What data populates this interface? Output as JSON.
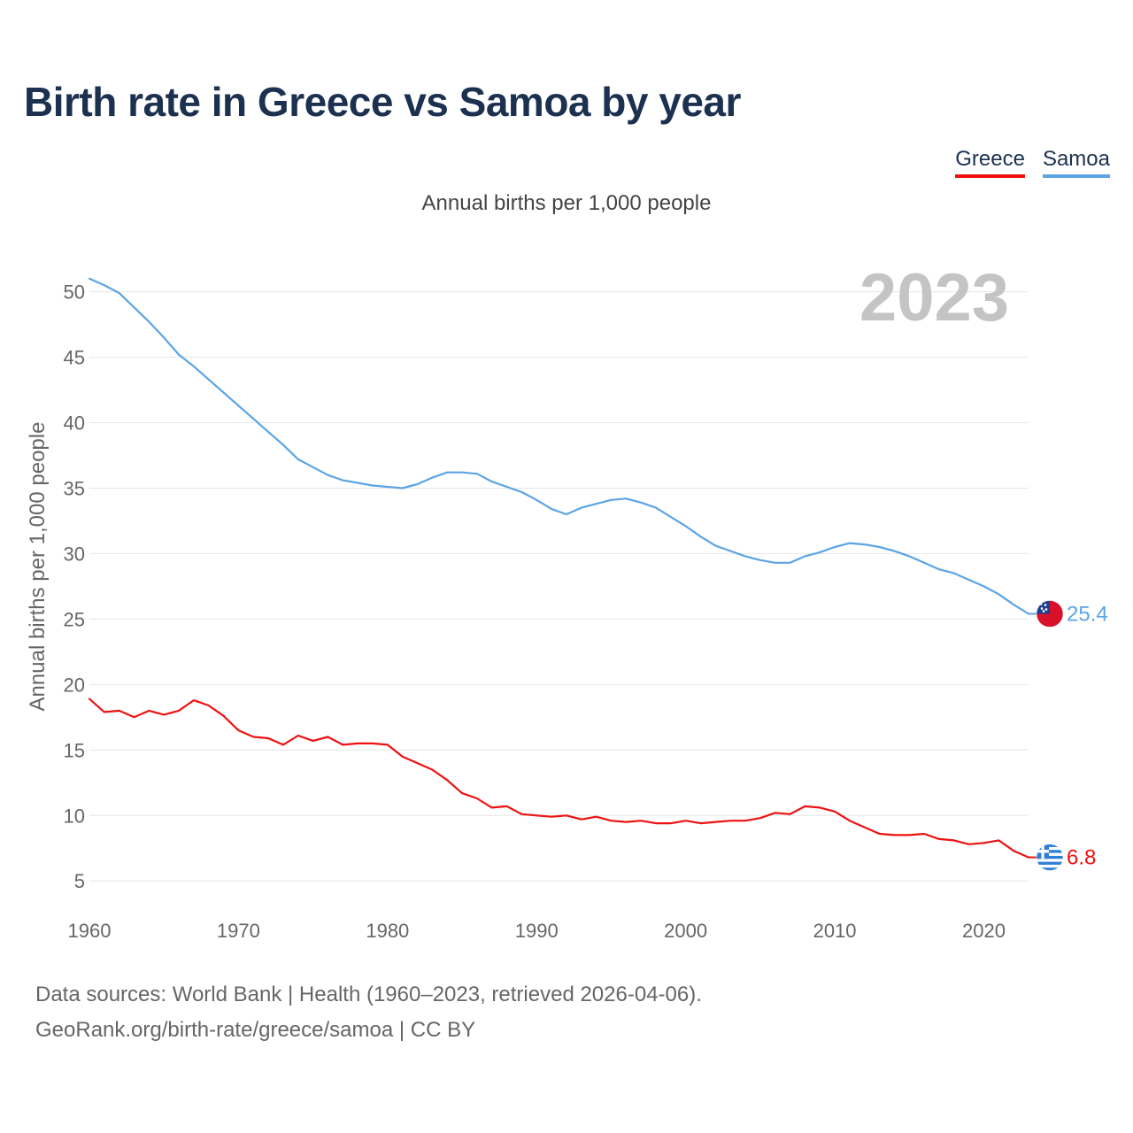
{
  "title": "Birth rate in Greece vs Samoa by year",
  "subtitle": "Annual births per 1,000 people",
  "legend": [
    {
      "label": "Greece",
      "color": "#ee1111"
    },
    {
      "label": "Samoa",
      "color": "#5ba4e5"
    }
  ],
  "year_watermark": "2023",
  "footer": {
    "line1": "Data sources: World Bank | Health (1960–2023, retrieved 2026-04-06).",
    "line2": "GeoRank.org/birth-rate/greece/samoa | CC BY"
  },
  "chart_data": {
    "type": "line",
    "title": "Birth rate in Greece vs Samoa by year",
    "xlabel": "",
    "ylabel": "Annual births per 1,000 people",
    "xlim": [
      1960,
      2023
    ],
    "ylim": [
      4,
      52
    ],
    "x_ticks": [
      1960,
      1970,
      1980,
      1990,
      2000,
      2010,
      2020
    ],
    "y_ticks": [
      5,
      10,
      15,
      20,
      25,
      30,
      35,
      40,
      45,
      50
    ],
    "grid": true,
    "x": [
      1960,
      1961,
      1962,
      1963,
      1964,
      1965,
      1966,
      1967,
      1968,
      1969,
      1970,
      1971,
      1972,
      1973,
      1974,
      1975,
      1976,
      1977,
      1978,
      1979,
      1980,
      1981,
      1982,
      1983,
      1984,
      1985,
      1986,
      1987,
      1988,
      1989,
      1990,
      1991,
      1992,
      1993,
      1994,
      1995,
      1996,
      1997,
      1998,
      1999,
      2000,
      2001,
      2002,
      2003,
      2004,
      2005,
      2006,
      2007,
      2008,
      2009,
      2010,
      2011,
      2012,
      2013,
      2014,
      2015,
      2016,
      2017,
      2018,
      2019,
      2020,
      2021,
      2022,
      2023
    ],
    "series": [
      {
        "name": "Greece",
        "color": "#ee1111",
        "end_label": "6.8",
        "values": [
          18.9,
          17.9,
          18.0,
          17.5,
          18.0,
          17.7,
          18.0,
          18.8,
          18.4,
          17.6,
          16.5,
          16.0,
          15.9,
          15.4,
          16.1,
          15.7,
          16.0,
          15.4,
          15.5,
          15.5,
          15.4,
          14.5,
          14.0,
          13.5,
          12.7,
          11.7,
          11.3,
          10.6,
          10.7,
          10.1,
          10.0,
          9.9,
          10.0,
          9.7,
          9.9,
          9.6,
          9.5,
          9.6,
          9.4,
          9.4,
          9.6,
          9.4,
          9.5,
          9.6,
          9.6,
          9.8,
          10.2,
          10.1,
          10.7,
          10.6,
          10.3,
          9.6,
          9.1,
          8.6,
          8.5,
          8.5,
          8.6,
          8.2,
          8.1,
          7.8,
          7.9,
          8.1,
          7.3,
          6.8
        ]
      },
      {
        "name": "Samoa",
        "color": "#5ba4e5",
        "end_label": "25.4",
        "values": [
          51.0,
          50.5,
          49.9,
          48.8,
          47.7,
          46.5,
          45.2,
          44.3,
          43.3,
          42.3,
          41.3,
          40.3,
          39.3,
          38.3,
          37.2,
          36.6,
          36.0,
          35.6,
          35.4,
          35.2,
          35.1,
          35.0,
          35.3,
          35.8,
          36.2,
          36.2,
          36.1,
          35.5,
          35.1,
          34.7,
          34.1,
          33.4,
          33.0,
          33.5,
          33.8,
          34.1,
          34.2,
          33.9,
          33.5,
          32.8,
          32.1,
          31.3,
          30.6,
          30.2,
          29.8,
          29.5,
          29.3,
          29.3,
          29.8,
          30.1,
          30.5,
          30.8,
          30.7,
          30.5,
          30.2,
          29.8,
          29.3,
          28.8,
          28.5,
          28.0,
          27.5,
          26.9,
          26.1,
          25.4
        ]
      }
    ],
    "annotation": "2023"
  }
}
